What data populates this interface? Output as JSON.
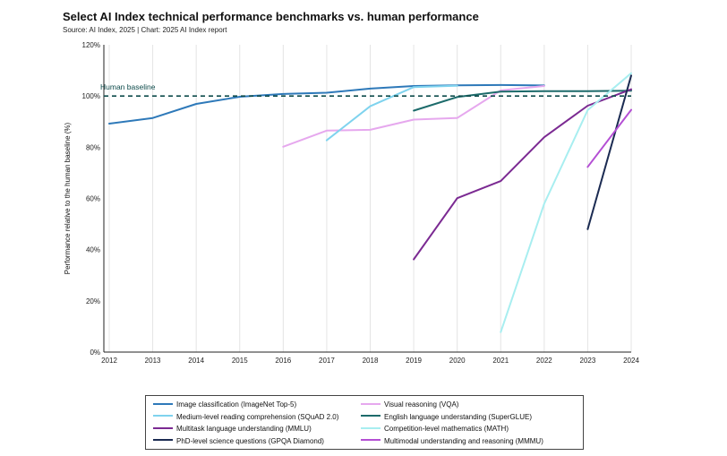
{
  "header": {
    "title": "Select AI Index technical performance benchmarks vs. human performance",
    "source": "Source: AI Index, 2025 | Chart: 2025 AI Index report"
  },
  "chart_data": {
    "type": "line",
    "ylabel": "Performance relative to the human baseline (%)",
    "xlabel": "",
    "x": [
      2012,
      2013,
      2014,
      2015,
      2016,
      2017,
      2018,
      2019,
      2020,
      2021,
      2022,
      2023,
      2024
    ],
    "ylim": [
      0,
      120
    ],
    "yticks": [
      0,
      20,
      40,
      60,
      80,
      100,
      120
    ],
    "ytick_labels": [
      "0%",
      "20%",
      "40%",
      "60%",
      "80%",
      "100%",
      "120%"
    ],
    "grid": "vertical",
    "baseline": {
      "label": "Human baseline",
      "value": 100
    },
    "series": [
      {
        "name": "Image classification (ImageNet Top-5)",
        "color": "#2e79b9",
        "points": [
          [
            2012,
            89.2
          ],
          [
            2013,
            91.4
          ],
          [
            2014,
            96.9
          ],
          [
            2015,
            99.7
          ],
          [
            2016,
            100.8
          ],
          [
            2017,
            101.3
          ],
          [
            2018,
            102.9
          ],
          [
            2019,
            103.9
          ],
          [
            2020,
            104.2
          ],
          [
            2021,
            104.3
          ],
          [
            2022,
            104.1
          ]
        ]
      },
      {
        "name": "Visual reasoning (VQA)",
        "color": "#e6a8ee",
        "points": [
          [
            2016,
            80.2
          ],
          [
            2017,
            86.5
          ],
          [
            2018,
            86.8
          ],
          [
            2019,
            90.8
          ],
          [
            2020,
            91.4
          ],
          [
            2021,
            102.2
          ],
          [
            2022,
            103.9
          ]
        ]
      },
      {
        "name": "Medium-level reading comprehension (SQuAD 2.0)",
        "color": "#7fd3ee",
        "points": [
          [
            2017,
            82.7
          ],
          [
            2018,
            96.0
          ],
          [
            2019,
            103.5
          ],
          [
            2020,
            104.0
          ]
        ]
      },
      {
        "name": "English language understanding (SuperGLUE)",
        "color": "#1d6b6b",
        "points": [
          [
            2019,
            94.3
          ],
          [
            2020,
            99.6
          ],
          [
            2021,
            101.7
          ],
          [
            2022,
            101.9
          ],
          [
            2023,
            101.9
          ],
          [
            2024,
            102.1
          ]
        ]
      },
      {
        "name": "Multitask language understanding (MMLU)",
        "color": "#7b2a92",
        "points": [
          [
            2019,
            36.2
          ],
          [
            2020,
            60.1
          ],
          [
            2021,
            66.8
          ],
          [
            2022,
            83.9
          ],
          [
            2023,
            96.2
          ],
          [
            2024,
            102.6
          ]
        ]
      },
      {
        "name": "Competition-level mathematics (MATH)",
        "color": "#a8eef0",
        "points": [
          [
            2021,
            7.8
          ],
          [
            2022,
            57.9
          ],
          [
            2023,
            94.5
          ],
          [
            2024,
            108.9
          ]
        ]
      },
      {
        "name": "PhD-level science questions (GPQA Diamond)",
        "color": "#1b2b52",
        "points": [
          [
            2023,
            48.0
          ],
          [
            2024,
            108.0
          ]
        ]
      },
      {
        "name": "Multimodal understanding and reasoning (MMMU)",
        "color": "#b44fd4",
        "points": [
          [
            2023,
            72.3
          ],
          [
            2024,
            94.6
          ]
        ]
      }
    ]
  }
}
